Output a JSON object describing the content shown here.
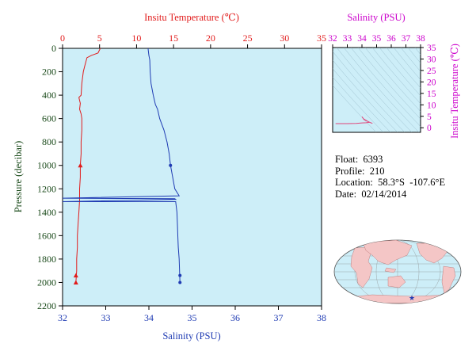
{
  "main": {
    "top_axis_title": "Insitu Temperature (℃)",
    "bottom_axis_title": "Salinity (PSU)",
    "left_axis_title": "Pressure (decibar)",
    "colors": {
      "temperature": "#e11b1b",
      "salinity": "#1f3bb3",
      "pressure_axis": "#1a4a1a",
      "plot_bg": "#cdeef8",
      "ts_axis": "#cc00cc"
    }
  },
  "ts_panel": {
    "top_axis_title": "Salinity (PSU)",
    "right_axis_title": "Insitu Temperature (℃)"
  },
  "info": {
    "float": "Float:  6393",
    "profile": "Profile:  210",
    "location": "Location:  58.3°S  -107.6°E",
    "date": "Date:  02/14/2014"
  },
  "map": {
    "marker_symbol": "star"
  },
  "chart_data": [
    {
      "type": "line",
      "title": "",
      "ylabel": "Pressure (decibar)",
      "ylim": [
        2200,
        0
      ],
      "yticks": [
        0,
        200,
        400,
        600,
        800,
        1000,
        1200,
        1400,
        1600,
        1800,
        2000,
        2200
      ],
      "xaxes": {
        "top": {
          "label": "Insitu Temperature (℃)",
          "lim": [
            0,
            35
          ],
          "ticks": [
            0,
            5,
            10,
            15,
            20,
            25,
            30,
            35
          ]
        },
        "bottom": {
          "label": "Salinity (PSU)",
          "lim": [
            32,
            38
          ],
          "ticks": [
            32,
            33,
            34,
            35,
            36,
            37,
            38
          ]
        }
      },
      "grid": false,
      "series": [
        {
          "axis": "top",
          "points": [
            [
              5.1,
              0
            ],
            [
              4.8,
              40
            ],
            [
              3.9,
              60
            ],
            [
              3.3,
              80
            ],
            [
              3.0,
              150
            ],
            [
              2.8,
              200
            ],
            [
              2.6,
              300
            ],
            [
              2.5,
              400
            ],
            [
              2.2,
              420
            ],
            [
              2.4,
              470
            ],
            [
              2.3,
              520
            ],
            [
              2.5,
              560
            ],
            [
              2.6,
              600
            ],
            [
              2.6,
              700
            ],
            [
              2.5,
              800
            ],
            [
              2.5,
              900
            ],
            [
              2.4,
              1000
            ],
            [
              2.4,
              1100
            ],
            [
              2.3,
              1200
            ],
            [
              2.3,
              1300
            ],
            [
              2.2,
              1400
            ],
            [
              2.1,
              1500
            ],
            [
              2.0,
              1600
            ],
            [
              2.0,
              1700
            ],
            [
              1.9,
              1800
            ],
            [
              1.9,
              1900
            ],
            [
              1.8,
              2000
            ]
          ],
          "markers": [
            [
              2.4,
              1000
            ],
            [
              1.8,
              1940
            ],
            [
              1.8,
              2000
            ]
          ]
        },
        {
          "axis": "bottom",
          "points": [
            [
              33.98,
              0
            ],
            [
              34.0,
              60
            ],
            [
              34.02,
              100
            ],
            [
              34.03,
              200
            ],
            [
              34.05,
              300
            ],
            [
              34.1,
              400
            ],
            [
              34.15,
              480
            ],
            [
              34.2,
              520
            ],
            [
              34.25,
              600
            ],
            [
              34.35,
              700
            ],
            [
              34.42,
              800
            ],
            [
              34.47,
              900
            ],
            [
              34.5,
              1000
            ],
            [
              34.55,
              1100
            ],
            [
              34.6,
              1200
            ],
            [
              34.7,
              1260
            ],
            [
              32.0,
              1280
            ],
            [
              34.6,
              1285
            ],
            [
              34.62,
              1290
            ],
            [
              32.0,
              1310
            ],
            [
              34.62,
              1310
            ],
            [
              34.65,
              1400
            ],
            [
              34.66,
              1500
            ],
            [
              34.67,
              1600
            ],
            [
              34.68,
              1700
            ],
            [
              34.7,
              1800
            ],
            [
              34.71,
              1900
            ],
            [
              34.72,
              2000
            ]
          ],
          "markers": [
            [
              34.5,
              1000
            ],
            [
              34.72,
              1940
            ],
            [
              34.72,
              2000
            ]
          ]
        }
      ]
    },
    {
      "type": "line",
      "title": "",
      "xlabel": "Salinity (PSU)",
      "ylabel": "Insitu Temperature (℃)",
      "xlim": [
        32,
        38
      ],
      "ylim": [
        -2,
        35
      ],
      "xticks": [
        32,
        33,
        34,
        35,
        36,
        37,
        38
      ],
      "yticks": [
        0,
        5,
        10,
        15,
        20,
        25,
        30,
        35
      ],
      "series": [
        {
          "points": [
            [
              32.2,
              1.8
            ],
            [
              33.0,
              1.8
            ],
            [
              33.6,
              1.9
            ],
            [
              34.0,
              2.1
            ],
            [
              34.3,
              2.2
            ],
            [
              34.5,
              2.4
            ],
            [
              34.3,
              3.2
            ],
            [
              34.1,
              3.9
            ],
            [
              34.0,
              4.8
            ],
            [
              34.15,
              3.5
            ],
            [
              34.6,
              2.2
            ],
            [
              34.72,
              1.9
            ]
          ]
        }
      ]
    }
  ]
}
